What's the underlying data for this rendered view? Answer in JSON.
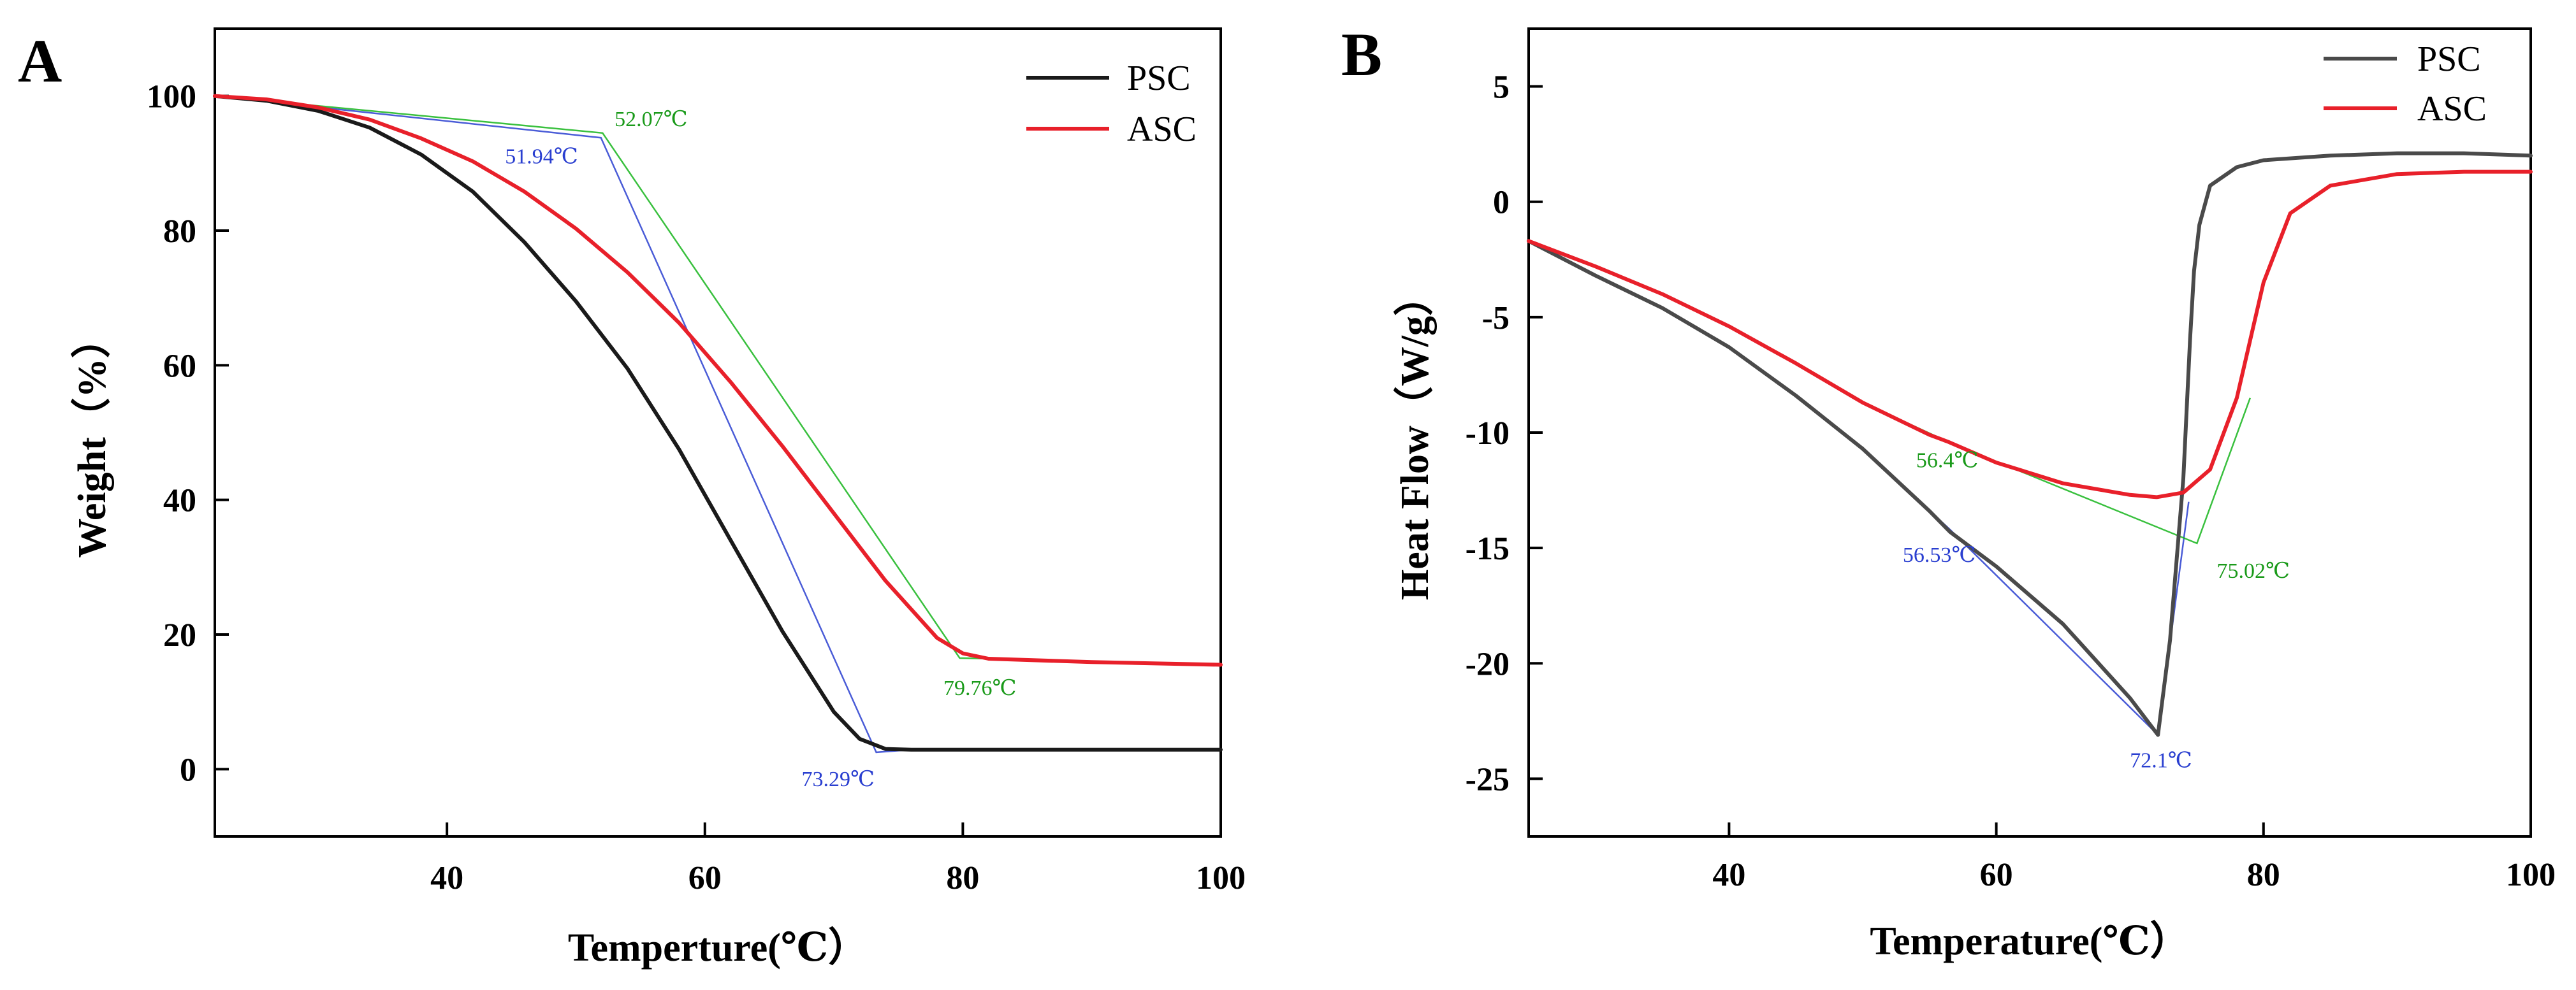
{
  "figure": {
    "panel_labels": [
      "A",
      "B"
    ]
  },
  "colors": {
    "psc": "#1a1a1a",
    "psc_b": "#4a4a4a",
    "asc": "#e8202a",
    "blue": "#2a3fd0",
    "green": "#16b51c",
    "green_text": "#1a9a1a"
  },
  "chart_data": [
    {
      "type": "line",
      "panel": "A",
      "title": "",
      "xlabel": "Temperture(℃）",
      "ylabel": "Weight（%）",
      "xlim": [
        22,
        100
      ],
      "ylim": [
        -10,
        110
      ],
      "xticks": [
        40,
        60,
        80,
        100
      ],
      "yticks": [
        0,
        20,
        40,
        60,
        80,
        100
      ],
      "grid": false,
      "legend": {
        "position": "top-right",
        "entries": [
          "PSC",
          "ASC"
        ]
      },
      "series": [
        {
          "name": "PSC",
          "color": "#1a1a1a",
          "x": [
            22,
            26,
            30,
            34,
            38,
            42,
            46,
            50,
            54,
            58,
            62,
            66,
            70,
            72,
            74,
            76,
            80,
            90,
            100
          ],
          "y": [
            100,
            99.3,
            97.8,
            95.3,
            91.3,
            85.8,
            78.3,
            69.5,
            59.5,
            47.5,
            34,
            20.5,
            8.5,
            4.5,
            3,
            2.9,
            2.9,
            2.9,
            2.9
          ]
        },
        {
          "name": "ASC",
          "color": "#e8202a",
          "x": [
            22,
            26,
            30,
            34,
            38,
            42,
            46,
            50,
            54,
            58,
            62,
            66,
            70,
            74,
            78,
            80,
            82,
            90,
            100
          ],
          "y": [
            100,
            99.5,
            98.3,
            96.5,
            93.7,
            90.3,
            85.8,
            80.3,
            73.8,
            66.3,
            57.5,
            48,
            38,
            28,
            19.5,
            17.2,
            16.4,
            15.9,
            15.5
          ]
        }
      ],
      "tangent_lines": [
        {
          "color": "#2a3fd0",
          "x": [
            22,
            51.94,
            73.29,
            76
          ],
          "y": [
            100,
            93.8,
            2.5,
            2.9
          ]
        },
        {
          "color": "#16b51c",
          "x": [
            22,
            52.07,
            79.76,
            82
          ],
          "y": [
            100,
            94.5,
            16.5,
            16.4
          ]
        }
      ],
      "annotations": [
        {
          "text": "51.94℃",
          "x": 44.5,
          "y": 90,
          "color": "#2a3fd0"
        },
        {
          "text": "52.07℃",
          "x": 53,
          "y": 95.5,
          "color": "#1a9a1a"
        },
        {
          "text": "79.76℃",
          "x": 78.5,
          "y": 11,
          "color": "#1a9a1a"
        },
        {
          "text": "73.29℃",
          "x": 67.5,
          "y": -2.5,
          "color": "#2a3fd0"
        }
      ]
    },
    {
      "type": "line",
      "panel": "B",
      "title": "",
      "xlabel": "Temperature(℃）",
      "ylabel": "Heat Flow（W/g）",
      "xlim": [
        25,
        100
      ],
      "ylim": [
        -27.5,
        7.5
      ],
      "xticks": [
        40,
        60,
        80,
        100
      ],
      "yticks": [
        5,
        0,
        -5,
        -10,
        -15,
        -20,
        -25
      ],
      "grid": false,
      "legend": {
        "position": "top-right",
        "entries": [
          "PSC",
          "ASC"
        ]
      },
      "series": [
        {
          "name": "PSC",
          "color": "#4a4a4a",
          "x": [
            25,
            30,
            35,
            40,
            45,
            50,
            55,
            56.53,
            60,
            65,
            70,
            72.1,
            73,
            74,
            74.5,
            74.8,
            75.2,
            76,
            78,
            80,
            85,
            90,
            95,
            100
          ],
          "y": [
            -1.7,
            -3.2,
            -4.6,
            -6.3,
            -8.4,
            -10.7,
            -13.4,
            -14.3,
            -15.8,
            -18.3,
            -21.5,
            -23.1,
            -19,
            -12,
            -6,
            -3,
            -1,
            0.7,
            1.5,
            1.8,
            2.0,
            2.1,
            2.1,
            2.0
          ]
        },
        {
          "name": "ASC",
          "color": "#e8202a",
          "x": [
            25,
            30,
            35,
            40,
            45,
            50,
            55,
            56.4,
            60,
            65,
            70,
            72,
            74,
            76,
            78,
            80,
            82,
            85,
            90,
            95,
            100
          ],
          "y": [
            -1.7,
            -2.8,
            -4.0,
            -5.4,
            -7.0,
            -8.7,
            -10.1,
            -10.4,
            -11.3,
            -12.2,
            -12.7,
            -12.8,
            -12.6,
            -11.6,
            -8.5,
            -3.5,
            -0.5,
            0.7,
            1.2,
            1.3,
            1.3
          ]
        }
      ],
      "tangent_lines": [
        {
          "color": "#2a3fd0",
          "x": [
            50,
            56.53,
            72.1,
            74.4
          ],
          "y": [
            -10.7,
            -14.2,
            -23.1,
            -13
          ]
        },
        {
          "color": "#16b51c",
          "x": [
            50,
            56.4,
            75.02,
            79
          ],
          "y": [
            -8.7,
            -10.4,
            -14.8,
            -8.5
          ]
        }
      ],
      "annotations": [
        {
          "text": "56.4℃",
          "x": 54,
          "y": -11.5,
          "color": "#1a9a1a"
        },
        {
          "text": "56.53℃",
          "x": 53,
          "y": -15.6,
          "color": "#2a3fd0"
        },
        {
          "text": "75.02℃",
          "x": 76.5,
          "y": -16.3,
          "color": "#1a9a1a"
        },
        {
          "text": "72.1℃",
          "x": 70,
          "y": -24.5,
          "color": "#2a3fd0"
        }
      ]
    }
  ]
}
